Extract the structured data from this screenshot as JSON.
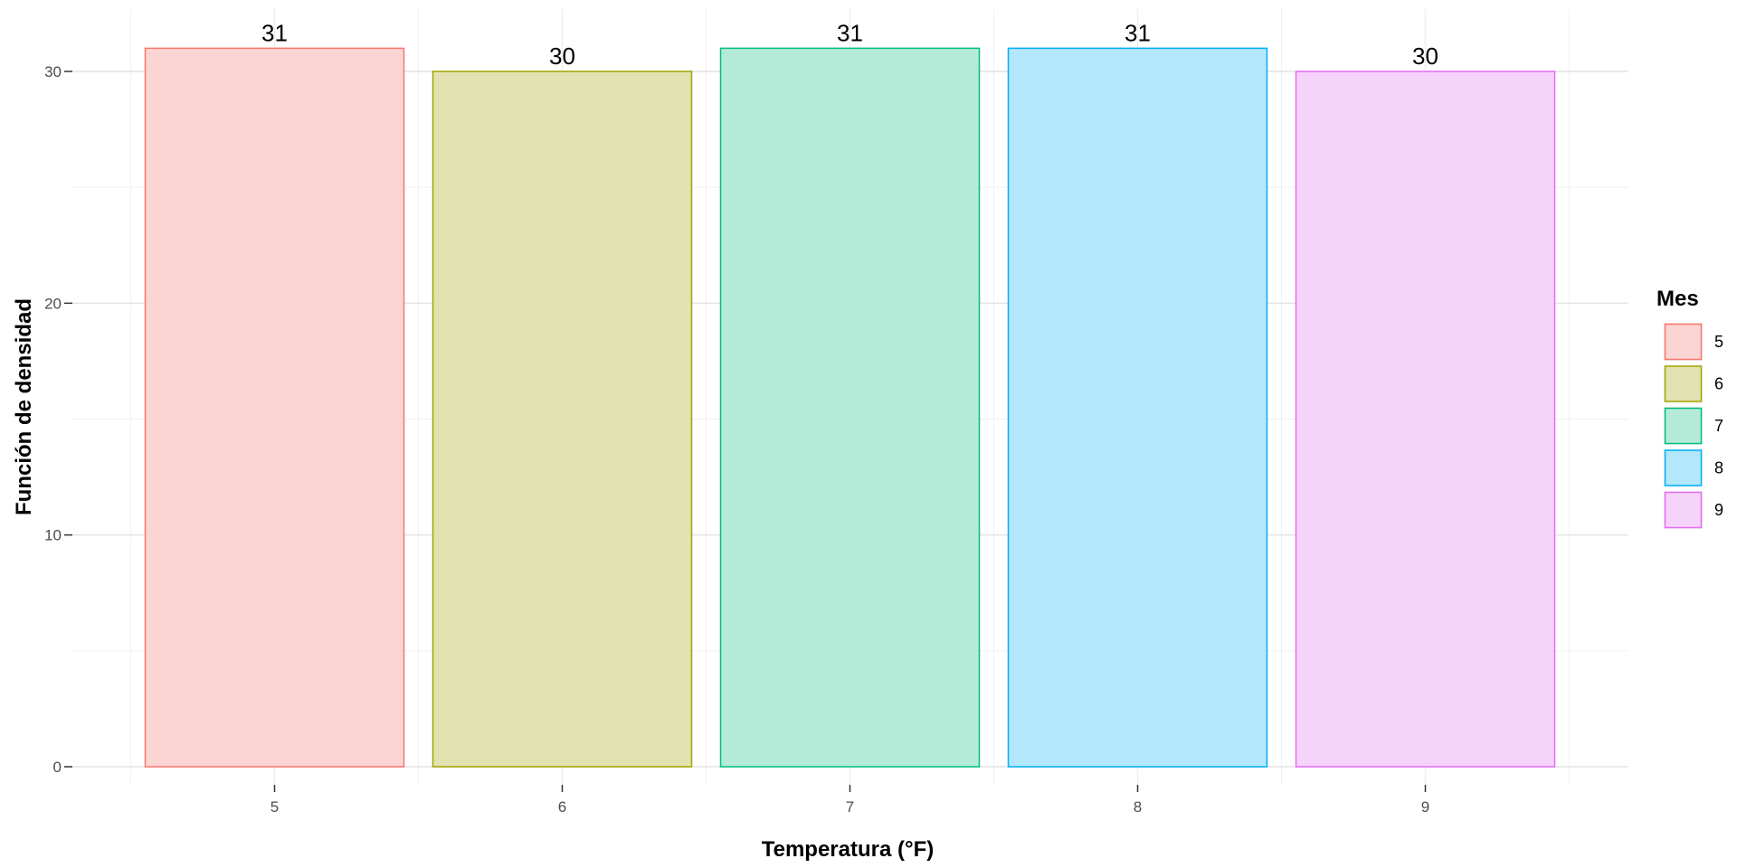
{
  "chart_data": {
    "type": "bar",
    "xlabel": "Temperatura (°F)",
    "ylabel": "Función de densidad",
    "categories": [
      "5",
      "6",
      "7",
      "8",
      "9"
    ],
    "values": [
      31,
      30,
      31,
      31,
      30
    ],
    "data_labels": [
      "31",
      "30",
      "31",
      "31",
      "30"
    ],
    "ylim": [
      0,
      31
    ],
    "y_ticks": [
      0,
      10,
      20,
      30
    ],
    "y_tick_labels": [
      "0",
      "10",
      "20",
      "30"
    ],
    "grid": true,
    "legend": {
      "title": "Mes",
      "placement": "right",
      "entries": [
        "5",
        "6",
        "7",
        "8",
        "9"
      ]
    },
    "colors": {
      "outline": [
        "#F8766D",
        "#A3A500",
        "#00BF7D",
        "#00B0F6",
        "#E76BF3"
      ],
      "fill": [
        "#FBD5D3",
        "#E2E2B1",
        "#B3EBD8",
        "#B3E7FC",
        "#F6D3FB"
      ]
    }
  }
}
